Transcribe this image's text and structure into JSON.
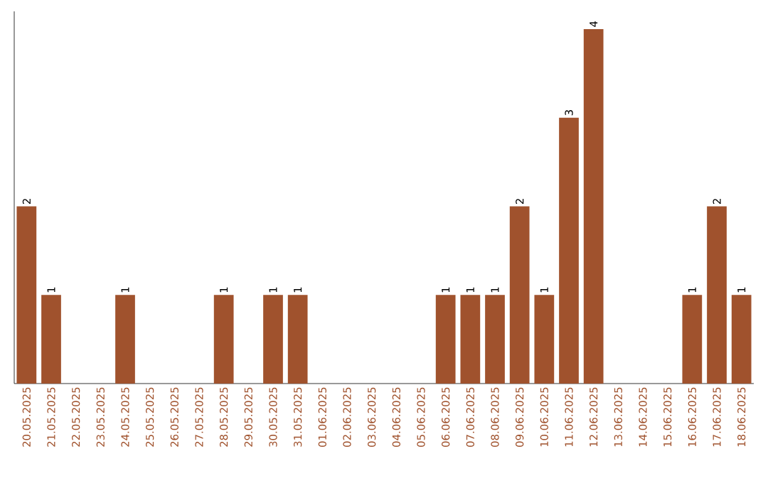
{
  "chart_data": {
    "type": "bar",
    "categories": [
      "20.05.2025",
      "21.05.2025",
      "22.05.2025",
      "23.05.2025",
      "24.05.2025",
      "25.05.2025",
      "26.05.2025",
      "27.05.2025",
      "28.05.2025",
      "29.05.2025",
      "30.05.2025",
      "31.05.2025",
      "01.06.2025",
      "02.06.2025",
      "03.06.2025",
      "04.06.2025",
      "05.06.2025",
      "06.06.2025",
      "07.06.2025",
      "08.06.2025",
      "09.06.2025",
      "10.06.2025",
      "11.06.2025",
      "12.06.2025",
      "13.06.2025",
      "14.06.2025",
      "15.06.2025",
      "16.06.2025",
      "17.06.2025",
      "18.06.2025"
    ],
    "values": [
      2,
      1,
      0,
      0,
      1,
      0,
      0,
      0,
      1,
      0,
      1,
      1,
      0,
      0,
      0,
      0,
      0,
      1,
      1,
      1,
      2,
      1,
      3,
      4,
      0,
      0,
      0,
      1,
      2,
      1
    ],
    "value_labels": [
      "2",
      "1",
      null,
      null,
      "1",
      null,
      null,
      null,
      "1",
      null,
      "1",
      "1",
      null,
      null,
      null,
      null,
      null,
      "1",
      "1",
      "1",
      "2",
      "1",
      "3",
      "4",
      null,
      null,
      null,
      "1",
      "2",
      "1"
    ],
    "color": "#a0522d",
    "ylim": [
      0,
      4.2
    ],
    "tick_labels": "x",
    "grid": false
  }
}
